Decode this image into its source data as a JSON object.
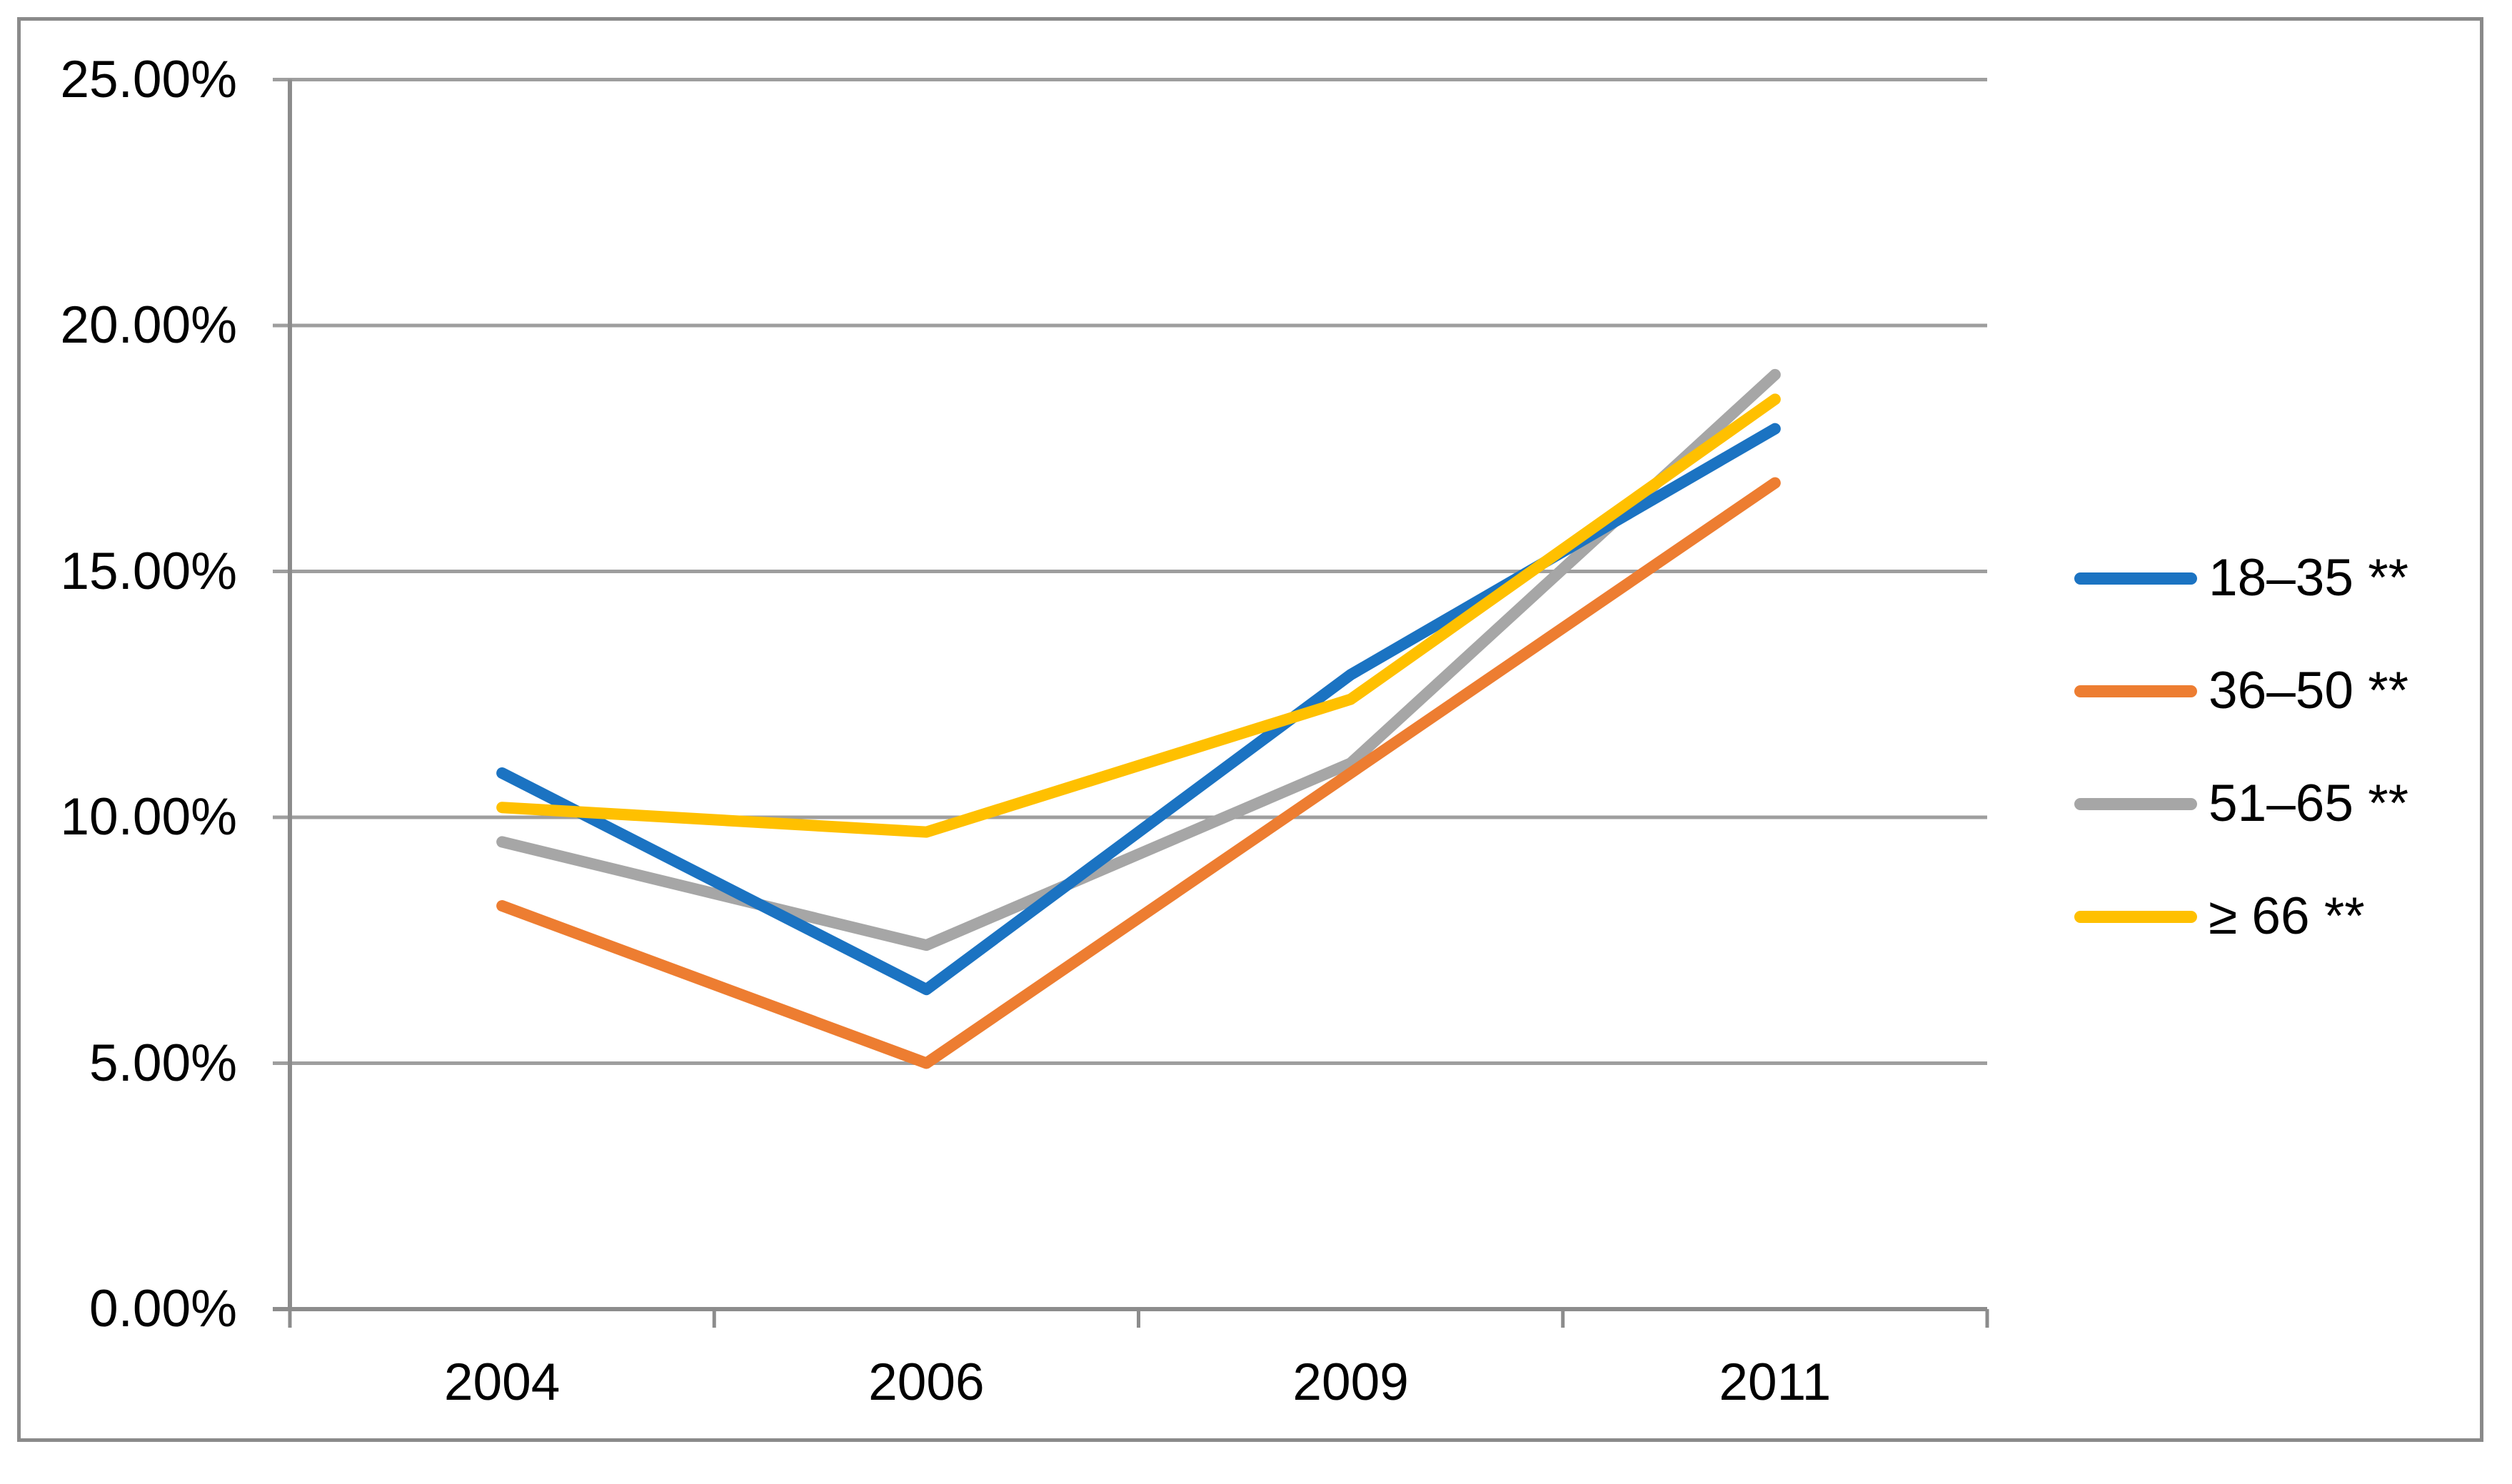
{
  "figure": {
    "background": "#ffffff",
    "border_color": "#8a8a8a",
    "gridline_color": "#9e9e9e",
    "axis_color": "#8c8c8c",
    "text_color": "#000000"
  },
  "chart_data": {
    "type": "line",
    "title": "",
    "xlabel": "",
    "ylabel": "",
    "categories": [
      "2004",
      "2006",
      "2009",
      "2011"
    ],
    "y_axis": {
      "min": 0,
      "max": 25,
      "step": 5,
      "format": "percent",
      "tick_labels": [
        "0.00%",
        "5.00%",
        "10.00%",
        "15.00%",
        "20.00%",
        "25.00%"
      ],
      "tick_values": [
        0,
        5,
        10,
        15,
        20,
        25
      ]
    },
    "series": [
      {
        "name": "18–35 **",
        "color": "#1b73c2",
        "values": [
          10.9,
          6.5,
          12.9,
          17.9
        ]
      },
      {
        "name": "36–50 **",
        "color": "#ed7d31",
        "values": [
          8.2,
          5.0,
          10.9,
          16.8
        ]
      },
      {
        "name": "51–65 **",
        "color": "#a6a6a6",
        "values": [
          9.5,
          7.4,
          11.1,
          19.0
        ]
      },
      {
        "name": "≥ 66 **",
        "color": "#ffc000",
        "values": [
          10.2,
          9.7,
          12.4,
          18.5
        ]
      }
    ],
    "legend_position": "right",
    "grid": "horizontal",
    "units": "percent"
  }
}
